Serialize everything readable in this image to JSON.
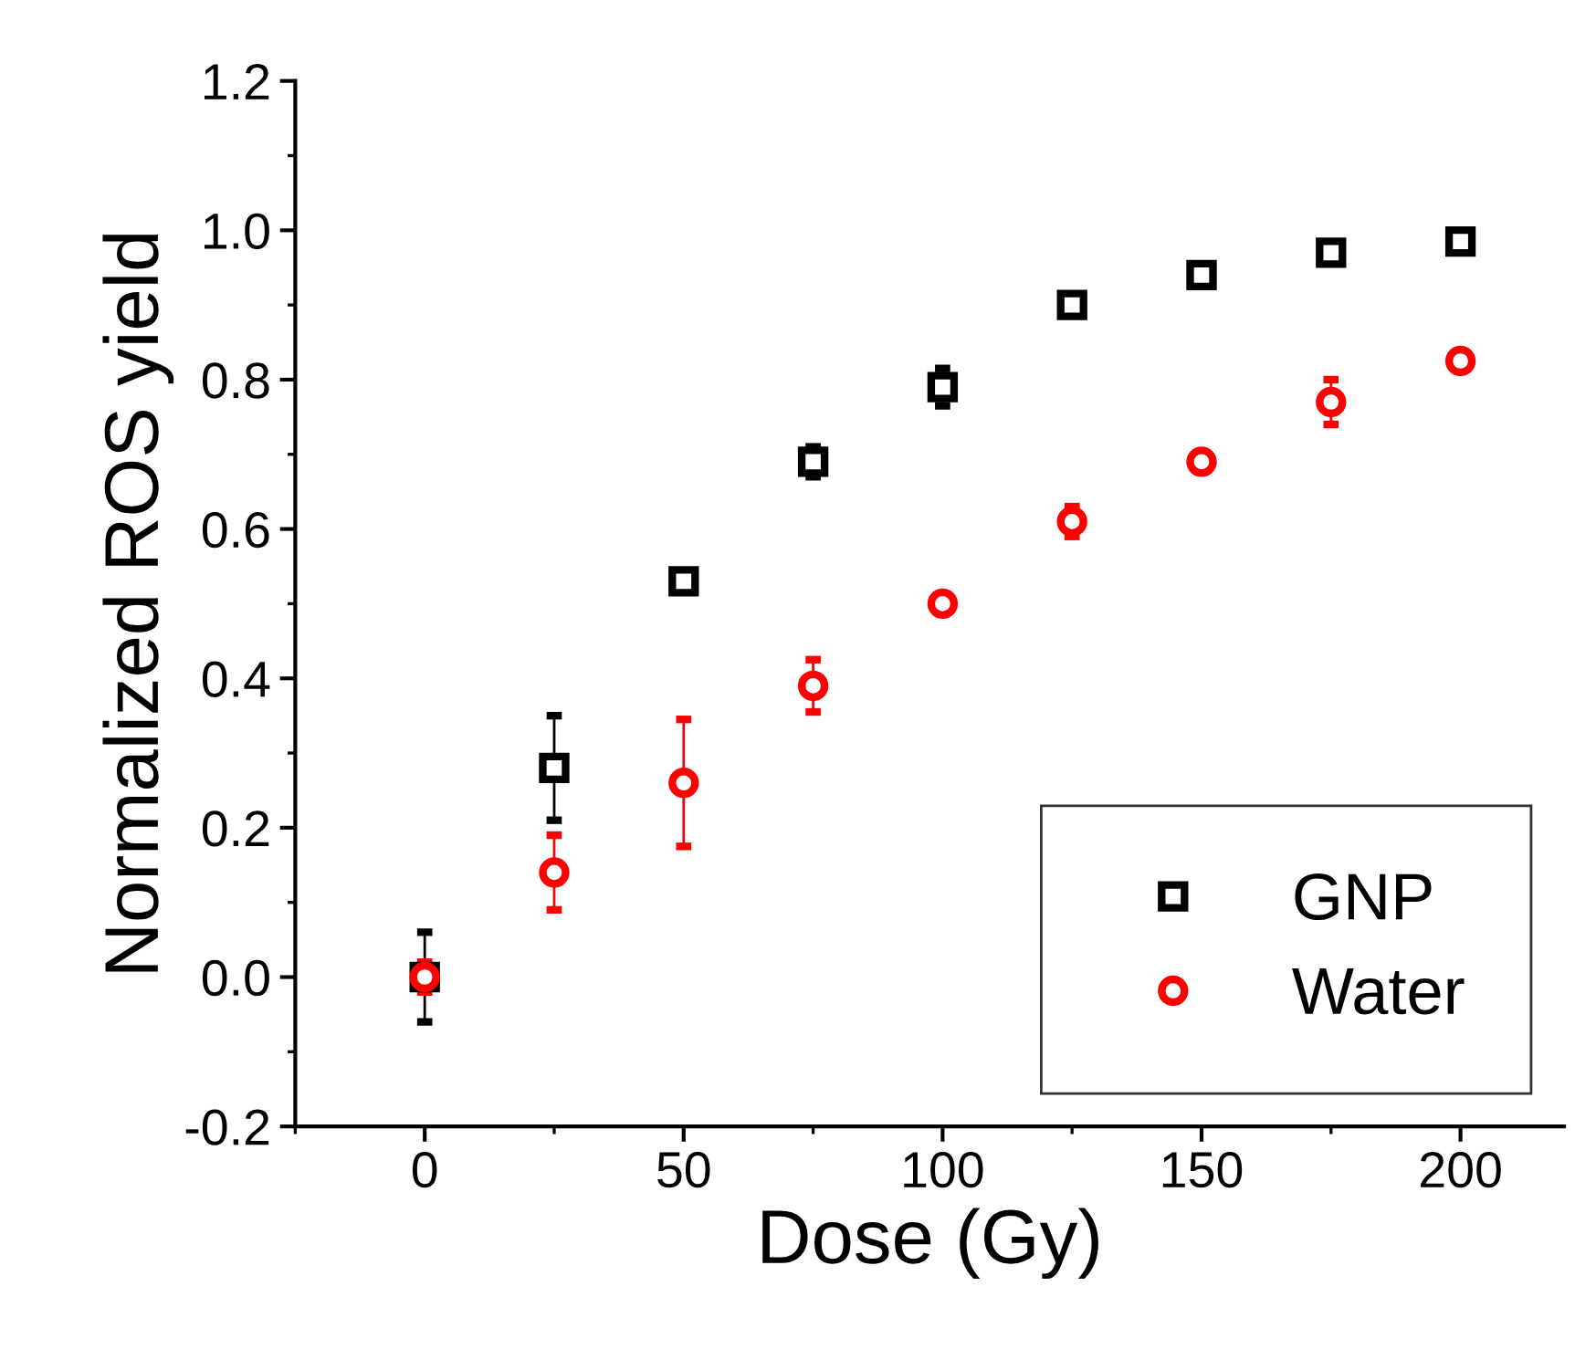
{
  "chart_data": {
    "type": "scatter",
    "xlabel": "Dose (Gy)",
    "ylabel": "Normalized ROS yield",
    "xlim": [
      -25,
      220
    ],
    "xticks": [
      0,
      50,
      100,
      150,
      200
    ],
    "ylim": [
      -0.2,
      1.2
    ],
    "yticks": [
      -0.2,
      {
        "value": 0,
        "label": "0.0"
      },
      0.2,
      0.4,
      0.6,
      0.8,
      {
        "value": 1,
        "label": "1.0"
      },
      1.2
    ],
    "grid": false,
    "legend": "bottom right",
    "series": [
      {
        "name": "GNP",
        "color": "#000000",
        "marker": "square",
        "x": [
          0,
          25,
          50,
          75,
          100,
          125,
          150,
          175,
          200
        ],
        "values": [
          0.0,
          0.28,
          0.53,
          0.69,
          0.79,
          0.9,
          0.94,
          0.97,
          0.985
        ],
        "errors": [
          0.06,
          0.07,
          0.01,
          0.02,
          0.025,
          0.01,
          0.01,
          0.01,
          0.01
        ]
      },
      {
        "name": "Water",
        "color": "#ff0000",
        "marker": "circle",
        "x": [
          0,
          25,
          50,
          75,
          100,
          125,
          150,
          175,
          200
        ],
        "values": [
          0.0,
          0.14,
          0.26,
          0.39,
          0.5,
          0.61,
          0.69,
          0.77,
          0.825
        ],
        "errors": [
          0.02,
          0.05,
          0.085,
          0.035,
          0.01,
          0.02,
          0.01,
          0.03,
          0.01
        ]
      }
    ]
  }
}
